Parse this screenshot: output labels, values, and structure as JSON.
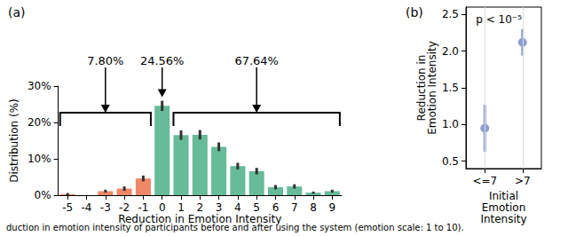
{
  "chart_data": [
    {
      "type": "bar",
      "title": "(a)",
      "x_label": "Reduction in Emotion Intensity",
      "y_label": "Distribution (%)",
      "categories": [
        -5,
        -4,
        -3,
        -2,
        -1,
        0,
        1,
        2,
        3,
        4,
        5,
        6,
        7,
        8,
        9
      ],
      "values": [
        0.3,
        0,
        1.1,
        1.8,
        4.6,
        24.56,
        16.5,
        16.6,
        13.3,
        8.0,
        6.6,
        2.2,
        2.4,
        0.7,
        1.1
      ],
      "errors": [
        0.3,
        0,
        0.4,
        0.6,
        0.8,
        1.4,
        1.3,
        1.3,
        1.2,
        0.9,
        0.9,
        0.6,
        0.6,
        0.3,
        0.4
      ],
      "colors": [
        "#ee8866",
        "#ee8866",
        "#ee8866",
        "#ee8866",
        "#ee8866",
        "#66bb99",
        "#66bb99",
        "#66bb99",
        "#66bb99",
        "#66bb99",
        "#66bb99",
        "#66bb99",
        "#66bb99",
        "#66bb99",
        "#66bb99"
      ],
      "ylim": [
        0,
        30
      ],
      "yticks": [
        {
          "value": 0,
          "label": "0%"
        },
        {
          "value": 10,
          "label": "10%"
        },
        {
          "value": 20,
          "label": "20%"
        },
        {
          "value": 30,
          "label": "30%"
        }
      ],
      "grid": false,
      "annotations": [
        {
          "text": "7.80%",
          "from": -5,
          "to": -1
        },
        {
          "text": "24.56%",
          "from": 0,
          "to": 0
        },
        {
          "text": "67.64%",
          "from": 1,
          "to": 9
        }
      ]
    },
    {
      "type": "scatter",
      "title": "(b)",
      "x_label": "Initial\nEmotion\nIntensity",
      "y_label": "Reduction in\nEmotion Intensity",
      "categories": [
        "<=7",
        ">7"
      ],
      "values": [
        0.95,
        2.12
      ],
      "errors": [
        0.32,
        0.18
      ],
      "color": "#8c9fd0",
      "marker": "circle",
      "ylim": [
        0.4,
        2.6
      ],
      "yticks": [
        0.5,
        {
          "value": 1,
          "label": "1.0"
        },
        1.5,
        {
          "value": 2,
          "label": "2.0"
        },
        2.5
      ],
      "grid": true,
      "annotations": [
        {
          "text": "p < 10⁻⁵"
        }
      ]
    }
  ],
  "caption": "duction in emotion intensity of participants before and after using the system (emotion scale: 1 to 10)."
}
